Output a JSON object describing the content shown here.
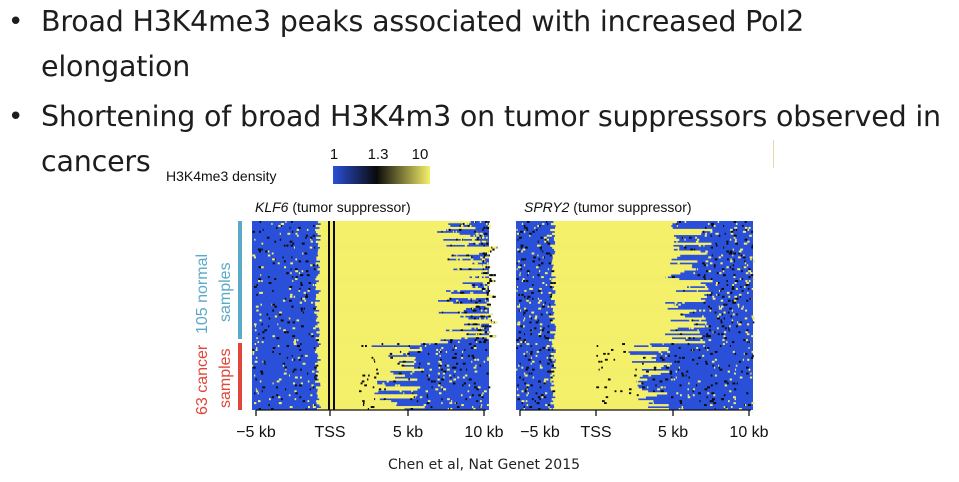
{
  "bullets": [
    {
      "line1": "Broad H3K4me3 peaks associated with increased Pol2",
      "line2": "elongation"
    },
    {
      "line1": "Shortening of broad H3K4m3 on tumor suppressors observed in",
      "line2": "cancers"
    }
  ],
  "figure": {
    "density_label": "H3K4me3 density",
    "colorbar_ticks": [
      "1",
      "1.3",
      "10"
    ],
    "colors": {
      "low": "#2a4fd8",
      "mid": "#0a0a0a",
      "high": "#f5f06a"
    },
    "panels": [
      {
        "gene": "KLF6",
        "suffix": " (tumor suppressor)",
        "x_ticks": [
          "−5 kb",
          "TSS",
          "5 kb",
          "10 kb"
        ]
      },
      {
        "gene": "SPRY2",
        "suffix": " (tumor suppressor)",
        "x_ticks": [
          "−5 kb",
          "TSS",
          "5 kb",
          "10 kb"
        ]
      }
    ],
    "groups": [
      {
        "label_line1": "105 normal",
        "label_line2": "samples",
        "color": "#5aa9c8"
      },
      {
        "label_line1": "63 cancer",
        "label_line2": "samples",
        "color": "#e0463a"
      }
    ]
  },
  "citation": "Chen et al, Nat Genet 2015"
}
